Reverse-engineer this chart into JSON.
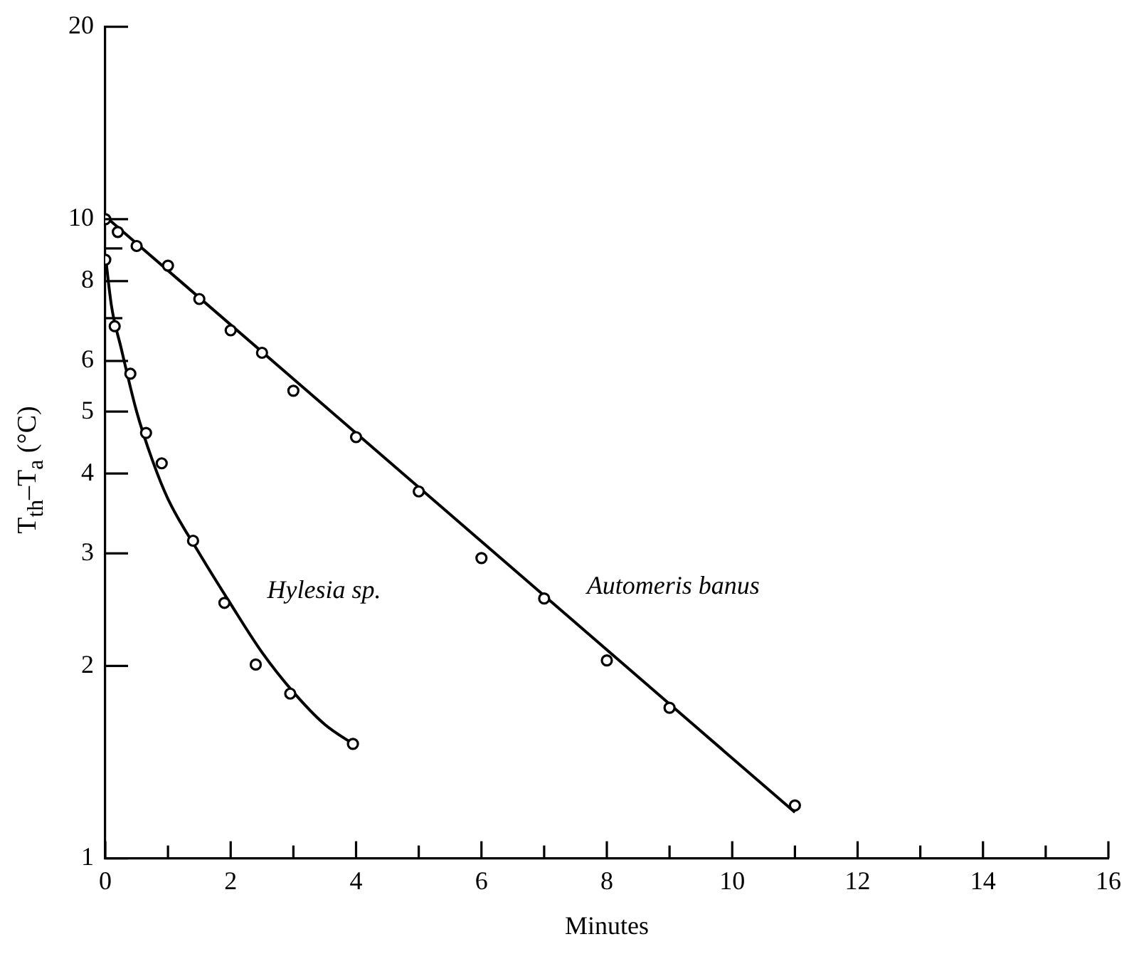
{
  "chart_data": {
    "type": "scatter",
    "xlabel": "Minutes",
    "ylabel": "T$_{th}$–T$_{a}$ (°C)",
    "log": "y",
    "grid": false,
    "legend": false,
    "line_style": "solid",
    "xlim": [
      0,
      16
    ],
    "xticks": [
      0,
      {
        "value": 1,
        "label": null
      },
      2,
      {
        "value": 3,
        "label": null
      },
      4,
      {
        "value": 5,
        "label": null
      },
      6,
      {
        "value": 7,
        "label": null
      },
      8,
      {
        "value": 9,
        "label": null
      },
      10,
      {
        "value": 11,
        "label": null
      },
      12,
      {
        "value": 13,
        "label": null
      },
      14,
      {
        "value": 15,
        "label": null
      },
      16
    ],
    "ylim": [
      1,
      20
    ],
    "yticks": [
      1,
      2,
      3,
      4,
      5,
      6,
      {
        "value": 7,
        "label": null
      },
      8,
      {
        "value": 9,
        "label": null
      },
      10,
      20
    ],
    "series": [
      {
        "name": "Automeris banus",
        "marker": "circle",
        "color": "#000000",
        "x": [
          0,
          0.2,
          0.5,
          1,
          1.5,
          2,
          2.5,
          3,
          4,
          5,
          6,
          7,
          8,
          9,
          11
        ],
        "values": [
          10.0,
          9.55,
          9.08,
          8.46,
          7.5,
          6.7,
          6.18,
          5.39,
          4.56,
          3.75,
          2.95,
          2.55,
          2.04,
          1.72,
          1.21
        ]
      },
      {
        "type": "line",
        "marker": "none",
        "color": "#000000",
        "x": [
          0,
          11
        ],
        "values": [
          10.1,
          1.18
        ]
      },
      {
        "name": "Hylesia sp.",
        "marker": "circle",
        "color": "#000000",
        "x": [
          0,
          0.15,
          0.4,
          0.65,
          0.9,
          1.4,
          1.9,
          2.4,
          2.95,
          3.95
        ],
        "values": [
          8.64,
          6.8,
          5.73,
          4.63,
          4.15,
          3.14,
          2.51,
          2.01,
          1.81,
          1.51
        ]
      },
      {
        "type": "line",
        "marker": "none",
        "color": "#000000",
        "x": [
          0,
          0.1,
          0.25,
          0.5,
          0.75,
          1,
          1.5,
          2,
          2.5,
          3,
          3.5,
          4
        ],
        "values": [
          8.8,
          7.3,
          6.3,
          5.0,
          4.2,
          3.65,
          3.0,
          2.5,
          2.1,
          1.82,
          1.62,
          1.5
        ]
      }
    ]
  }
}
